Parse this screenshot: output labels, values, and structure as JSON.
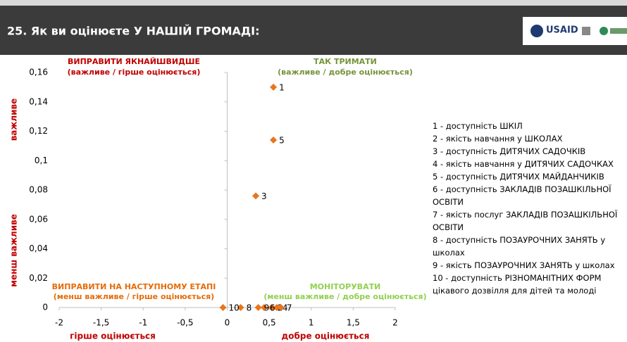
{
  "chart_data": {
    "type": "scatter",
    "title": "25. Як ви оцінюєте У НАШІЙ ГРОМАДІ:",
    "logo": "USAID",
    "x": [
      0.55,
      0.53,
      0.34,
      0.59,
      0.55,
      0.44,
      0.64,
      0.16,
      0.37,
      -0.05
    ],
    "y": [
      0.15,
      0,
      0.076,
      0,
      0.114,
      0,
      0,
      0,
      0,
      0
    ],
    "labels": [
      "1",
      "2",
      "3",
      "4",
      "5",
      "6",
      "7",
      "8",
      "9",
      "10"
    ],
    "color": "#e8761e",
    "xlim": [
      -2,
      2
    ],
    "ylim": [
      0,
      0.16
    ],
    "xticks": [
      -2,
      {
        "value": -1.5,
        "label": "-1,5"
      },
      -1,
      {
        "value": -0.5,
        "label": "-0,5"
      },
      0,
      {
        "value": 0.5,
        "label": "0,5"
      },
      1,
      {
        "value": 1.5,
        "label": "1,5"
      },
      2
    ],
    "yticks": [
      0,
      {
        "value": 0.02,
        "label": "0,02"
      },
      {
        "value": 0.04,
        "label": "0,04"
      },
      {
        "value": 0.06,
        "label": "0,06"
      },
      {
        "value": 0.08,
        "label": "0,08"
      },
      {
        "value": 0.1,
        "label": "0,1"
      },
      {
        "value": 0.12,
        "label": "0,12"
      },
      {
        "value": 0.14,
        "label": "0,14"
      },
      {
        "value": 0.16,
        "label": "0,16"
      }
    ],
    "quadrants": [
      {
        "title": "ВИПРАВИТИ ЯКНАЙШВИДШЕ",
        "subtitle": "(важливе / гірше оцінюється)",
        "color": "#c00000"
      },
      {
        "title": "ТАК ТРИМАТИ",
        "subtitle": "(важливе / добре оцінюється)",
        "color": "#77933c"
      },
      {
        "title": "ВИПРАВИТИ НА НАСТУПНОМУ ЕТАПІ",
        "subtitle": "(менш важливе / гірше оцінюється)",
        "color": "#e46c0a"
      },
      {
        "title": "МОНІТОРУВАТИ",
        "subtitle": "(менш важливе / добре оцінюється)",
        "color": "#92d050"
      }
    ],
    "y_axis_labels": [
      "важливе",
      "менш важливе"
    ],
    "x_axis_labels": [
      "гірше оцінюється",
      "добре оцінюється"
    ],
    "axis_label_color": "#c00000",
    "legend": [
      "1 - доступність ШКІЛ",
      "2 - якість навчання у ШКОЛАХ",
      "3 - доступність ДИТЯЧИХ САДОЧКІВ",
      "4 - якість навчання у ДИТЯЧИХ САДОЧКАХ",
      "5 - доступність ДИТЯЧИХ МАЙДАНЧИКІВ",
      "6 - доступність ЗАКЛАДІВ ПОЗАШКІЛЬНОЇ ОСВІТИ",
      "7 - якість послуг ЗАКЛАДІВ ПОЗАШКІЛЬНОЇ ОСВІТИ",
      "8 - доступність ПОЗАУРОЧНИХ ЗАНЯТЬ у школах",
      "9 - якість ПОЗАУРОЧНИХ ЗАНЯТЬ у школах",
      "10 - доступність РІЗНОМАНІТНИХ ФОРМ цікавого дозвілля для дітей та молоді"
    ]
  }
}
